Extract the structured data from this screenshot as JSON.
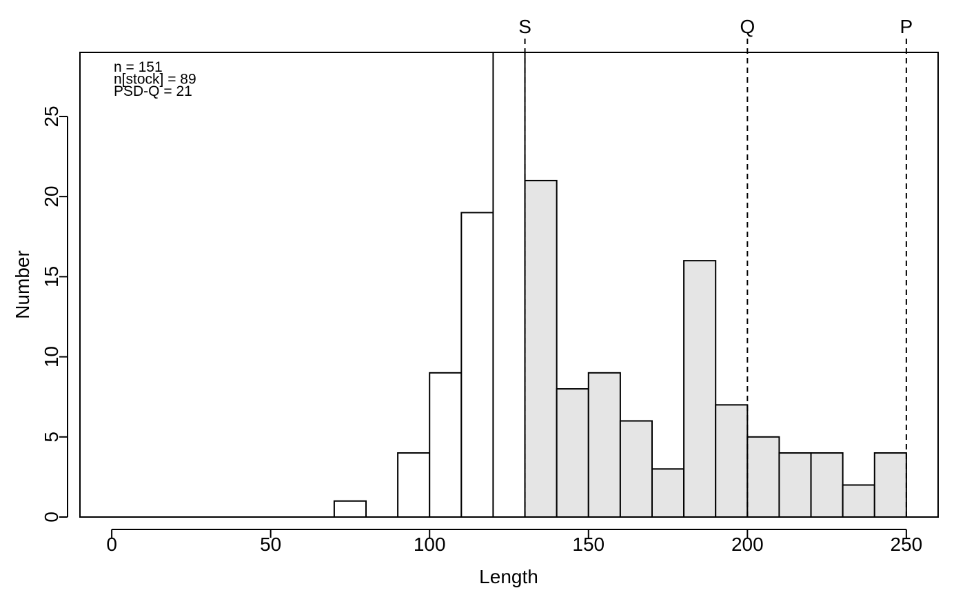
{
  "chart_data": {
    "type": "bar",
    "xlabel": "Length",
    "ylabel": "Number",
    "xlim": [
      -10,
      260
    ],
    "ylim": [
      0,
      29
    ],
    "x_ticks": [
      "0",
      "50",
      "100",
      "150",
      "200",
      "250"
    ],
    "y_ticks": [
      "0",
      "5",
      "10",
      "15",
      "20",
      "25"
    ],
    "bin_width": 10,
    "bins": [
      {
        "start": 70,
        "value": 1,
        "group": "substock"
      },
      {
        "start": 80,
        "value": 0,
        "group": "substock"
      },
      {
        "start": 90,
        "value": 4,
        "group": "substock"
      },
      {
        "start": 100,
        "value": 9,
        "group": "substock"
      },
      {
        "start": 110,
        "value": 19,
        "group": "substock"
      },
      {
        "start": 120,
        "value": 29,
        "group": "substock"
      },
      {
        "start": 130,
        "value": 21,
        "group": "stock"
      },
      {
        "start": 140,
        "value": 8,
        "group": "stock"
      },
      {
        "start": 150,
        "value": 9,
        "group": "stock"
      },
      {
        "start": 160,
        "value": 6,
        "group": "stock"
      },
      {
        "start": 170,
        "value": 3,
        "group": "stock"
      },
      {
        "start": 180,
        "value": 16,
        "group": "stock"
      },
      {
        "start": 190,
        "value": 7,
        "group": "stock"
      },
      {
        "start": 200,
        "value": 5,
        "group": "stock"
      },
      {
        "start": 210,
        "value": 4,
        "group": "stock"
      },
      {
        "start": 220,
        "value": 4,
        "group": "stock"
      },
      {
        "start": 230,
        "value": 2,
        "group": "stock"
      },
      {
        "start": 240,
        "value": 4,
        "group": "stock"
      }
    ],
    "colors": {
      "substock": "#ffffff",
      "stock": "#e5e5e5",
      "outline": "#000000"
    },
    "gabel_lines": [
      {
        "label": "S",
        "x": 130
      },
      {
        "label": "Q",
        "x": 200
      },
      {
        "label": "P",
        "x": 250
      }
    ],
    "annotations": [
      "n = 151",
      "n[stock] = 89",
      "PSD-Q = 21"
    ],
    "grid": false
  }
}
